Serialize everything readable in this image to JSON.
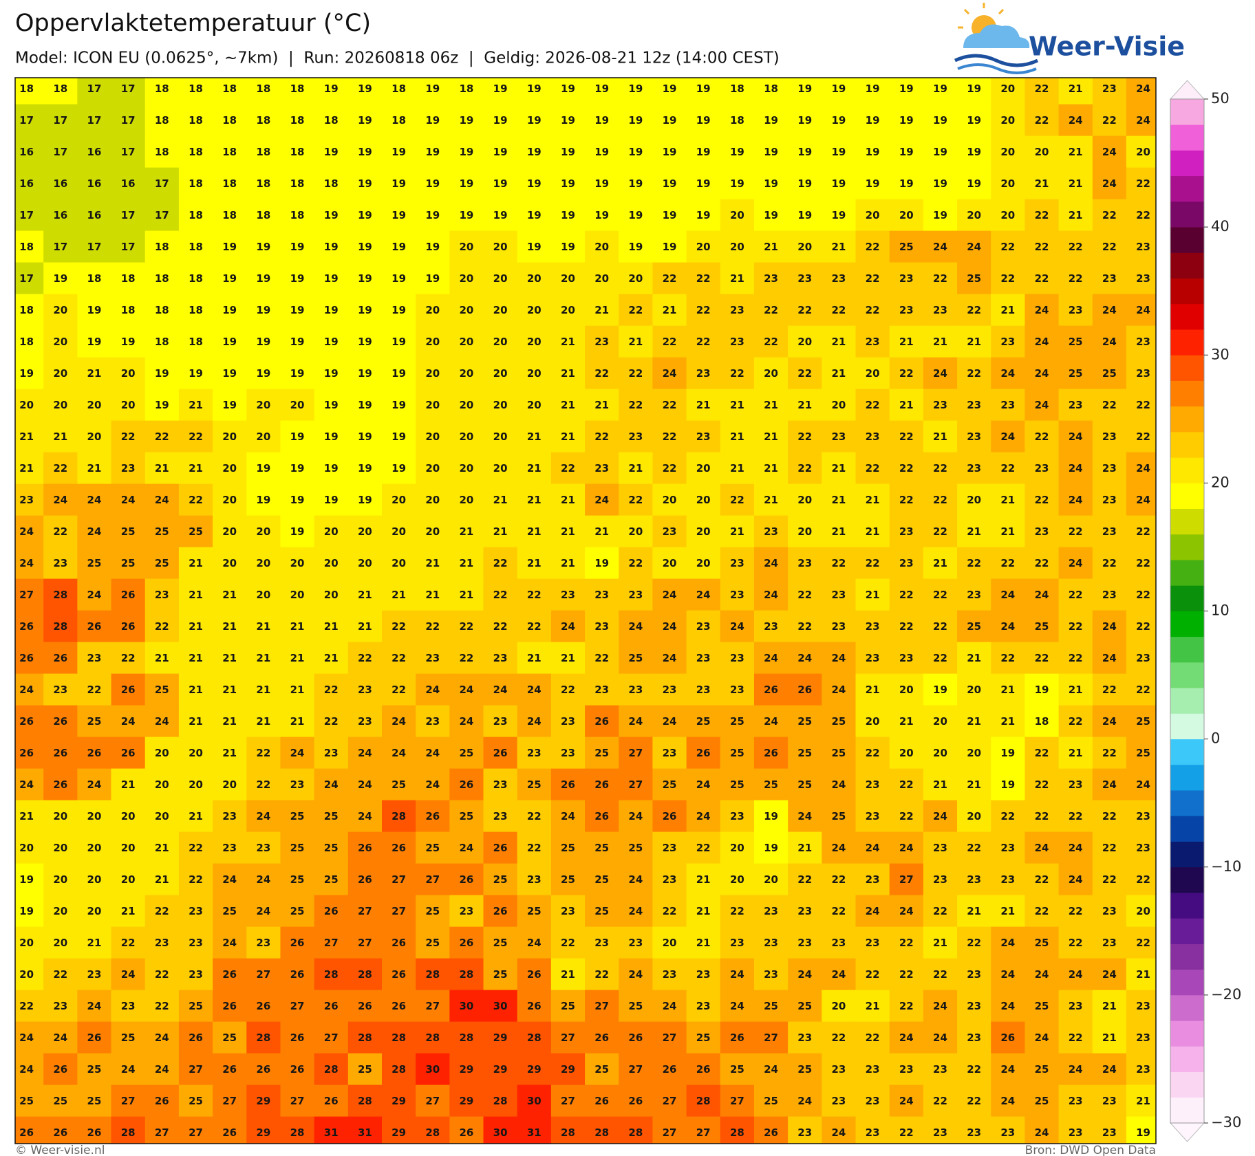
{
  "header": {
    "title": "Oppervlaktetemperatuur (°C)",
    "subtitle": "Model: ICON EU (0.0625°, ~7km)  |  Run: 20260818 06z  |  Geldig: 2026-08-21 12z (14:00 CEST)"
  },
  "logo": "Weer-Visie",
  "grid": {
    "values": [
      [
        18,
        18,
        17,
        17,
        18,
        18,
        18,
        18,
        18,
        19,
        19,
        18,
        19,
        18,
        19,
        19,
        19,
        19,
        19,
        19,
        19,
        18,
        18,
        19,
        19,
        19,
        19,
        19,
        19,
        20,
        22,
        21,
        23,
        24
      ],
      [
        17,
        17,
        17,
        17,
        18,
        18,
        18,
        18,
        18,
        18,
        19,
        18,
        19,
        19,
        19,
        19,
        19,
        19,
        19,
        19,
        19,
        18,
        19,
        19,
        19,
        19,
        19,
        19,
        19,
        20,
        22,
        24,
        22,
        24
      ],
      [
        16,
        17,
        16,
        17,
        18,
        18,
        18,
        18,
        18,
        19,
        19,
        19,
        19,
        19,
        19,
        19,
        19,
        19,
        19,
        19,
        19,
        19,
        19,
        19,
        19,
        19,
        19,
        19,
        19,
        20,
        20,
        21,
        24,
        20
      ],
      [
        16,
        16,
        16,
        16,
        17,
        18,
        18,
        18,
        18,
        18,
        19,
        19,
        19,
        19,
        19,
        19,
        19,
        19,
        19,
        19,
        19,
        19,
        19,
        19,
        19,
        19,
        19,
        19,
        19,
        20,
        21,
        21,
        24,
        22
      ],
      [
        17,
        16,
        16,
        17,
        17,
        18,
        18,
        18,
        18,
        19,
        19,
        19,
        19,
        19,
        19,
        19,
        19,
        19,
        19,
        19,
        19,
        20,
        19,
        19,
        19,
        20,
        20,
        19,
        20,
        20,
        22,
        21,
        22,
        22
      ],
      [
        18,
        17,
        17,
        17,
        18,
        18,
        19,
        19,
        19,
        19,
        19,
        19,
        19,
        20,
        20,
        19,
        19,
        20,
        19,
        19,
        20,
        20,
        21,
        20,
        21,
        22,
        25,
        24,
        24,
        22,
        22,
        22,
        22,
        23
      ],
      [
        17,
        19,
        18,
        18,
        18,
        18,
        19,
        19,
        19,
        19,
        19,
        19,
        19,
        20,
        20,
        20,
        20,
        20,
        20,
        22,
        22,
        21,
        23,
        23,
        23,
        22,
        23,
        22,
        25,
        22,
        22,
        22,
        23,
        23
      ],
      [
        18,
        20,
        19,
        18,
        18,
        18,
        19,
        19,
        19,
        19,
        19,
        19,
        20,
        20,
        20,
        20,
        20,
        21,
        22,
        21,
        22,
        23,
        22,
        22,
        22,
        22,
        23,
        23,
        22,
        21,
        24,
        23,
        24,
        24
      ],
      [
        18,
        20,
        19,
        19,
        18,
        18,
        19,
        19,
        19,
        19,
        19,
        19,
        20,
        20,
        20,
        20,
        21,
        23,
        21,
        22,
        22,
        23,
        22,
        20,
        21,
        23,
        21,
        21,
        21,
        23,
        24,
        25,
        24,
        23
      ],
      [
        19,
        20,
        21,
        20,
        19,
        19,
        19,
        19,
        19,
        19,
        19,
        19,
        20,
        20,
        20,
        20,
        21,
        22,
        22,
        24,
        23,
        22,
        20,
        22,
        21,
        20,
        22,
        24,
        22,
        24,
        24,
        25,
        25,
        23
      ],
      [
        20,
        20,
        20,
        20,
        19,
        21,
        19,
        20,
        20,
        19,
        19,
        19,
        20,
        20,
        20,
        20,
        21,
        21,
        22,
        22,
        21,
        21,
        21,
        21,
        20,
        22,
        21,
        23,
        23,
        23,
        24,
        23,
        22,
        22
      ],
      [
        21,
        21,
        20,
        22,
        22,
        22,
        20,
        20,
        19,
        19,
        19,
        19,
        20,
        20,
        20,
        21,
        21,
        22,
        23,
        22,
        23,
        21,
        21,
        22,
        23,
        23,
        22,
        21,
        23,
        24,
        22,
        24,
        23,
        22
      ],
      [
        21,
        22,
        21,
        23,
        21,
        21,
        20,
        19,
        19,
        19,
        19,
        19,
        20,
        20,
        20,
        21,
        22,
        23,
        21,
        22,
        20,
        21,
        21,
        22,
        21,
        22,
        22,
        22,
        23,
        22,
        23,
        24,
        23,
        24
      ],
      [
        23,
        24,
        24,
        24,
        24,
        22,
        20,
        19,
        19,
        19,
        19,
        20,
        20,
        20,
        21,
        21,
        21,
        24,
        22,
        20,
        20,
        22,
        21,
        20,
        21,
        21,
        22,
        22,
        20,
        21,
        22,
        24,
        23,
        24
      ],
      [
        24,
        22,
        24,
        25,
        25,
        25,
        20,
        20,
        19,
        20,
        20,
        20,
        20,
        21,
        21,
        21,
        21,
        21,
        20,
        23,
        20,
        21,
        23,
        20,
        21,
        21,
        23,
        22,
        21,
        21,
        23,
        22,
        23,
        22
      ],
      [
        24,
        23,
        25,
        25,
        25,
        21,
        20,
        20,
        20,
        20,
        20,
        20,
        21,
        21,
        22,
        21,
        21,
        19,
        22,
        20,
        20,
        23,
        24,
        23,
        22,
        22,
        23,
        21,
        22,
        22,
        22,
        24,
        22,
        22
      ],
      [
        27,
        28,
        24,
        26,
        23,
        21,
        21,
        20,
        20,
        20,
        21,
        21,
        21,
        21,
        22,
        22,
        23,
        23,
        23,
        24,
        24,
        23,
        24,
        22,
        23,
        21,
        22,
        22,
        23,
        24,
        24,
        22,
        23,
        22
      ],
      [
        26,
        28,
        26,
        26,
        22,
        21,
        21,
        21,
        21,
        21,
        21,
        22,
        22,
        22,
        22,
        22,
        24,
        23,
        24,
        24,
        23,
        24,
        23,
        22,
        23,
        23,
        22,
        22,
        25,
        24,
        25,
        22,
        24,
        22
      ],
      [
        26,
        26,
        23,
        22,
        21,
        21,
        21,
        21,
        21,
        21,
        22,
        22,
        23,
        22,
        23,
        21,
        21,
        22,
        25,
        24,
        23,
        23,
        24,
        24,
        24,
        23,
        23,
        22,
        21,
        22,
        22,
        22,
        24,
        23
      ],
      [
        24,
        23,
        22,
        26,
        25,
        21,
        21,
        21,
        21,
        22,
        23,
        22,
        24,
        24,
        24,
        24,
        22,
        23,
        23,
        23,
        23,
        23,
        26,
        26,
        24,
        21,
        20,
        19,
        20,
        21,
        19,
        21,
        22,
        22
      ],
      [
        26,
        26,
        25,
        24,
        24,
        21,
        21,
        21,
        21,
        22,
        23,
        24,
        23,
        24,
        23,
        24,
        23,
        26,
        24,
        24,
        25,
        25,
        24,
        25,
        25,
        20,
        21,
        20,
        21,
        21,
        18,
        22,
        24,
        25
      ],
      [
        26,
        26,
        26,
        26,
        20,
        20,
        21,
        22,
        24,
        23,
        24,
        24,
        24,
        25,
        26,
        23,
        23,
        25,
        27,
        23,
        26,
        25,
        26,
        25,
        25,
        22,
        20,
        20,
        20,
        19,
        22,
        21,
        22,
        25
      ],
      [
        24,
        26,
        24,
        21,
        20,
        20,
        20,
        22,
        23,
        24,
        24,
        25,
        24,
        26,
        23,
        25,
        26,
        26,
        27,
        25,
        24,
        25,
        25,
        25,
        24,
        23,
        22,
        21,
        21,
        19,
        22,
        23,
        24,
        24
      ],
      [
        21,
        20,
        20,
        20,
        20,
        21,
        23,
        24,
        25,
        25,
        24,
        28,
        26,
        25,
        23,
        22,
        24,
        26,
        24,
        26,
        24,
        23,
        19,
        24,
        25,
        23,
        22,
        24,
        20,
        22,
        22,
        22,
        22,
        23
      ],
      [
        20,
        20,
        20,
        20,
        21,
        22,
        23,
        23,
        25,
        25,
        26,
        26,
        25,
        24,
        26,
        22,
        25,
        25,
        25,
        23,
        22,
        20,
        19,
        21,
        24,
        24,
        24,
        23,
        22,
        23,
        24,
        24,
        22,
        23
      ],
      [
        19,
        20,
        20,
        20,
        21,
        22,
        24,
        24,
        25,
        25,
        26,
        27,
        27,
        26,
        25,
        23,
        25,
        25,
        24,
        23,
        21,
        20,
        20,
        22,
        22,
        23,
        27,
        23,
        23,
        23,
        22,
        24,
        22,
        22
      ],
      [
        19,
        20,
        20,
        21,
        22,
        23,
        25,
        24,
        25,
        26,
        27,
        27,
        25,
        23,
        26,
        25,
        23,
        25,
        24,
        22,
        21,
        22,
        23,
        23,
        22,
        24,
        24,
        22,
        21,
        21,
        22,
        22,
        23,
        20
      ],
      [
        20,
        20,
        21,
        22,
        23,
        23,
        24,
        23,
        26,
        27,
        27,
        26,
        25,
        26,
        25,
        24,
        22,
        23,
        23,
        20,
        21,
        23,
        23,
        23,
        23,
        23,
        22,
        21,
        22,
        24,
        25,
        22,
        23,
        22
      ],
      [
        20,
        22,
        23,
        24,
        22,
        23,
        26,
        27,
        26,
        28,
        28,
        26,
        28,
        28,
        25,
        26,
        21,
        22,
        24,
        23,
        23,
        24,
        23,
        24,
        24,
        22,
        22,
        22,
        23,
        24,
        24,
        24,
        24,
        21
      ],
      [
        22,
        23,
        24,
        23,
        22,
        25,
        26,
        26,
        27,
        26,
        26,
        26,
        27,
        30,
        30,
        26,
        25,
        27,
        25,
        24,
        23,
        24,
        25,
        25,
        20,
        21,
        22,
        24,
        23,
        24,
        25,
        23,
        21,
        23
      ],
      [
        24,
        24,
        26,
        25,
        24,
        26,
        25,
        28,
        26,
        27,
        28,
        28,
        28,
        28,
        29,
        28,
        27,
        26,
        26,
        27,
        25,
        26,
        27,
        23,
        22,
        22,
        24,
        24,
        23,
        26,
        24,
        22,
        21,
        23
      ],
      [
        24,
        26,
        25,
        24,
        24,
        27,
        26,
        26,
        26,
        28,
        25,
        28,
        30,
        29,
        29,
        29,
        29,
        25,
        27,
        26,
        26,
        25,
        24,
        25,
        23,
        23,
        23,
        23,
        22,
        24,
        25,
        24,
        24,
        23
      ],
      [
        25,
        25,
        25,
        27,
        26,
        25,
        27,
        29,
        27,
        26,
        28,
        29,
        27,
        29,
        28,
        30,
        27,
        26,
        26,
        27,
        28,
        27,
        25,
        24,
        23,
        23,
        24,
        22,
        22,
        24,
        25,
        23,
        23,
        21
      ],
      [
        26,
        26,
        26,
        28,
        27,
        27,
        26,
        29,
        28,
        31,
        31,
        29,
        28,
        26,
        30,
        31,
        28,
        28,
        28,
        27,
        27,
        28,
        26,
        23,
        24,
        23,
        22,
        23,
        23,
        23,
        24,
        23,
        23,
        19
      ]
    ]
  },
  "colorbar": {
    "bins": [
      -30,
      -28,
      -26,
      -24,
      -22,
      -20,
      -18,
      -16,
      -14,
      -12,
      -10,
      -8,
      -6,
      -4,
      -2,
      0,
      2,
      4,
      6,
      8,
      10,
      12,
      14,
      16,
      18,
      20,
      22,
      24,
      26,
      28,
      30,
      32,
      34,
      36,
      38,
      40,
      42,
      44,
      46,
      48,
      50
    ],
    "colors": [
      "#fdf0fb",
      "#fbd6f3",
      "#f6b3eb",
      "#e98de1",
      "#cc6ccc",
      "#a848b8",
      "#88309f",
      "#681c98",
      "#440c80",
      "#200850",
      "#0a1a6e",
      "#0644a8",
      "#1070cc",
      "#14a0e6",
      "#3cc8f8",
      "#d4fbe2",
      "#a6eeb0",
      "#74dc74",
      "#44c444",
      "#00b000",
      "#0a900a",
      "#44b012",
      "#8cc400",
      "#cedc00",
      "#ffff00",
      "#ffe800",
      "#ffcc00",
      "#ffaa00",
      "#ff8000",
      "#ff5400",
      "#ff2200",
      "#e00000",
      "#b80000",
      "#8c0010",
      "#5a0030",
      "#7a0866",
      "#a8108e",
      "#d020c0",
      "#f060d8",
      "#f8a8e0"
    ],
    "ticks": [
      50,
      40,
      30,
      20,
      10,
      0,
      {
        "value": -10,
        "label": "−10"
      },
      {
        "value": -20,
        "label": "−20"
      },
      {
        "value": -30,
        "label": "−30"
      }
    ]
  },
  "footer": {
    "left": "© Weer-visie.nl",
    "right": "Bron: DWD Open Data"
  }
}
